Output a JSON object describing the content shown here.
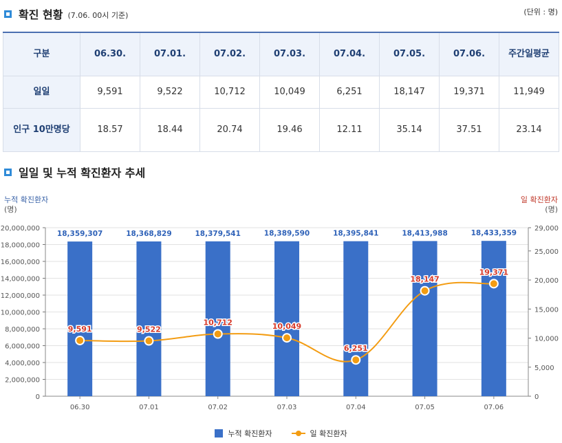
{
  "section1": {
    "title": "확진 현황",
    "subtitle": "(7.06. 00시 기준)",
    "unit": "(단위 : 명)"
  },
  "table": {
    "headers": [
      "구분",
      "06.30.",
      "07.01.",
      "07.02.",
      "07.03.",
      "07.04.",
      "07.05.",
      "07.06.",
      "주간일평균"
    ],
    "rows": [
      {
        "label": "일일",
        "values": [
          "9,591",
          "9,522",
          "10,712",
          "10,049",
          "6,251",
          "18,147",
          "19,371",
          "11,949"
        ]
      },
      {
        "label": "인구 10만명당",
        "values": [
          "18.57",
          "18.44",
          "20.74",
          "19.46",
          "12.11",
          "35.14",
          "37.51",
          "23.14"
        ]
      }
    ]
  },
  "section2": {
    "title": "일일 및 누적 확진환자 추세"
  },
  "chart_data": {
    "type": "bar",
    "title": "일일 및 누적 확진환자 추세",
    "categories": [
      "06.30",
      "07.01",
      "07.02",
      "07.03",
      "07.04",
      "07.05",
      "07.06"
    ],
    "left_axis_label": "누적 확진환자",
    "right_axis_label": "일 확진환자",
    "axis_unit": "(명)",
    "left_ylim": [
      0,
      20000000
    ],
    "left_ticks": [
      0,
      2000000,
      4000000,
      6000000,
      8000000,
      10000000,
      12000000,
      14000000,
      16000000,
      18000000,
      20000000
    ],
    "left_tick_labels": [
      "0",
      "2,000,000",
      "4,000,000",
      "6,000,000",
      "8,000,000",
      "10,000,000",
      "12,000,000",
      "14,000,000",
      "16,000,000",
      "18,000,000",
      "20,000,000"
    ],
    "right_ylim": [
      0,
      29000
    ],
    "right_ticks": [
      0,
      5000,
      10000,
      15000,
      20000,
      25000,
      29000
    ],
    "right_tick_labels": [
      "0",
      "5,000",
      "10,000",
      "15,000",
      "20,000",
      "25,000",
      "29,000"
    ],
    "series": [
      {
        "name": "누적 확진환자",
        "type": "bar",
        "axis": "left",
        "color": "#3a70c8",
        "values": [
          18359307,
          18368829,
          18379541,
          18389590,
          18395841,
          18413988,
          18433359
        ],
        "labels": [
          "18,359,307",
          "18,368,829",
          "18,379,541",
          "18,389,590",
          "18,395,841",
          "18,413,988",
          "18,433,359"
        ]
      },
      {
        "name": "일 확진환자",
        "type": "line",
        "axis": "right",
        "color": "#f39c12",
        "label_color": "#d63a2a",
        "values": [
          9591,
          9522,
          10712,
          10049,
          6251,
          18147,
          19371
        ],
        "labels": [
          "9,591",
          "9,522",
          "10,712",
          "10,049",
          "6,251",
          "18,147",
          "19,371"
        ]
      }
    ],
    "legend": [
      "누적 확진환자",
      "일 확진환자"
    ]
  }
}
